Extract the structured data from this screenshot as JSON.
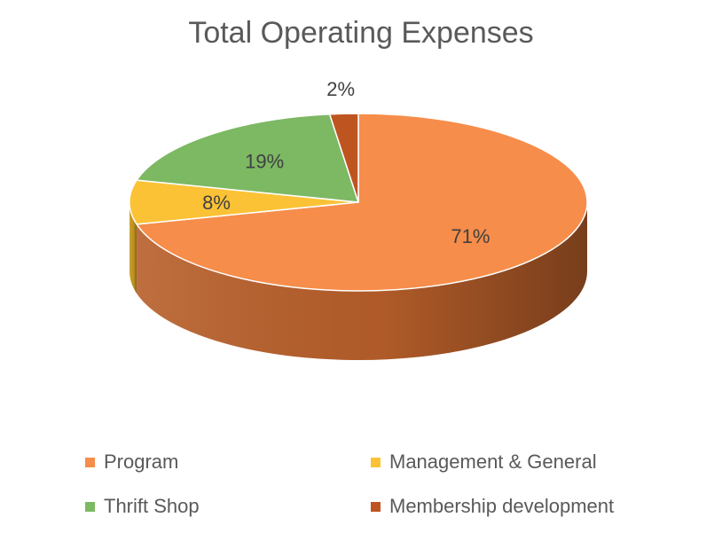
{
  "chart_data": {
    "type": "pie",
    "title": "Total Operating Expenses",
    "slices": [
      {
        "name": "Program",
        "value": 71,
        "label": "71%",
        "color": "#F68D4A",
        "side_color": "#B85F2A"
      },
      {
        "name": "Management & General",
        "value": 8,
        "label": "8%",
        "color": "#FCC236",
        "side_color": "#C99A1F"
      },
      {
        "name": "Thrift Shop",
        "value": 19,
        "label": "19%",
        "color": "#7DB863",
        "side_color": "#5C8C47"
      },
      {
        "name": "Membership development",
        "value": 2,
        "label": "2%",
        "color": "#BE5521",
        "side_color": "#8A3A14"
      }
    ],
    "legend": {
      "placement": "bottom",
      "columns": 2
    },
    "style": "3d"
  }
}
